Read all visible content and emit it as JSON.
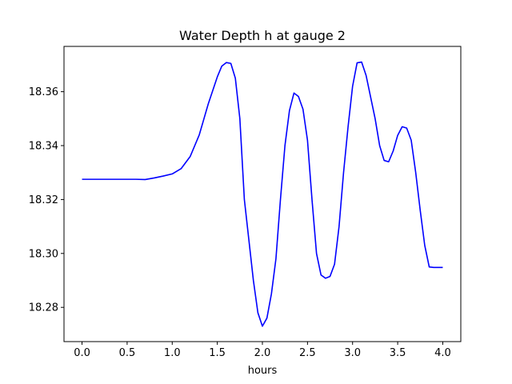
{
  "chart_data": {
    "type": "line",
    "title": "Water Depth h at gauge 2",
    "xlabel": "hours",
    "ylabel": "",
    "xlim": [
      -0.2,
      4.2
    ],
    "ylim": [
      18.2673,
      18.3768
    ],
    "x_ticks": [
      0.0,
      0.5,
      1.0,
      1.5,
      2.0,
      2.5,
      3.0,
      3.5,
      4.0
    ],
    "x_tick_labels": [
      "0.0",
      "0.5",
      "1.0",
      "1.5",
      "2.0",
      "2.5",
      "3.0",
      "3.5",
      "4.0"
    ],
    "y_ticks": [
      18.28,
      18.3,
      18.32,
      18.34,
      18.36
    ],
    "y_tick_labels": [
      "18.28",
      "18.30",
      "18.32",
      "18.34",
      "18.36"
    ],
    "grid": false,
    "legend": "none",
    "series": [
      {
        "color": "#0000ff",
        "x": [
          0.0,
          0.2,
          0.4,
          0.6,
          0.7,
          0.8,
          0.9,
          1.0,
          1.1,
          1.2,
          1.3,
          1.4,
          1.5,
          1.55,
          1.6,
          1.65,
          1.7,
          1.75,
          1.8,
          1.85,
          1.9,
          1.95,
          2.0,
          2.05,
          2.1,
          2.15,
          2.2,
          2.25,
          2.3,
          2.35,
          2.4,
          2.45,
          2.5,
          2.55,
          2.6,
          2.65,
          2.7,
          2.75,
          2.8,
          2.85,
          2.9,
          2.95,
          3.0,
          3.05,
          3.1,
          3.15,
          3.2,
          3.25,
          3.3,
          3.35,
          3.4,
          3.45,
          3.5,
          3.55,
          3.6,
          3.65,
          3.7,
          3.75,
          3.8,
          3.85,
          3.9,
          3.95,
          4.0
        ],
        "y": [
          18.3275,
          18.3275,
          18.3275,
          18.3275,
          18.3274,
          18.328,
          18.3287,
          18.3295,
          18.3315,
          18.336,
          18.344,
          18.3555,
          18.3655,
          18.3695,
          18.3708,
          18.3705,
          18.365,
          18.35,
          18.32,
          18.305,
          18.29,
          18.278,
          18.273,
          18.276,
          18.285,
          18.298,
          18.32,
          18.34,
          18.353,
          18.3595,
          18.3582,
          18.3535,
          18.342,
          18.32,
          18.3,
          18.292,
          18.2908,
          18.2915,
          18.296,
          18.31,
          18.33,
          18.347,
          18.362,
          18.3707,
          18.371,
          18.366,
          18.358,
          18.35,
          18.34,
          18.3345,
          18.334,
          18.338,
          18.3438,
          18.347,
          18.3465,
          18.342,
          18.33,
          18.316,
          18.303,
          18.295,
          18.2948,
          18.2948,
          18.2948
        ]
      }
    ]
  }
}
